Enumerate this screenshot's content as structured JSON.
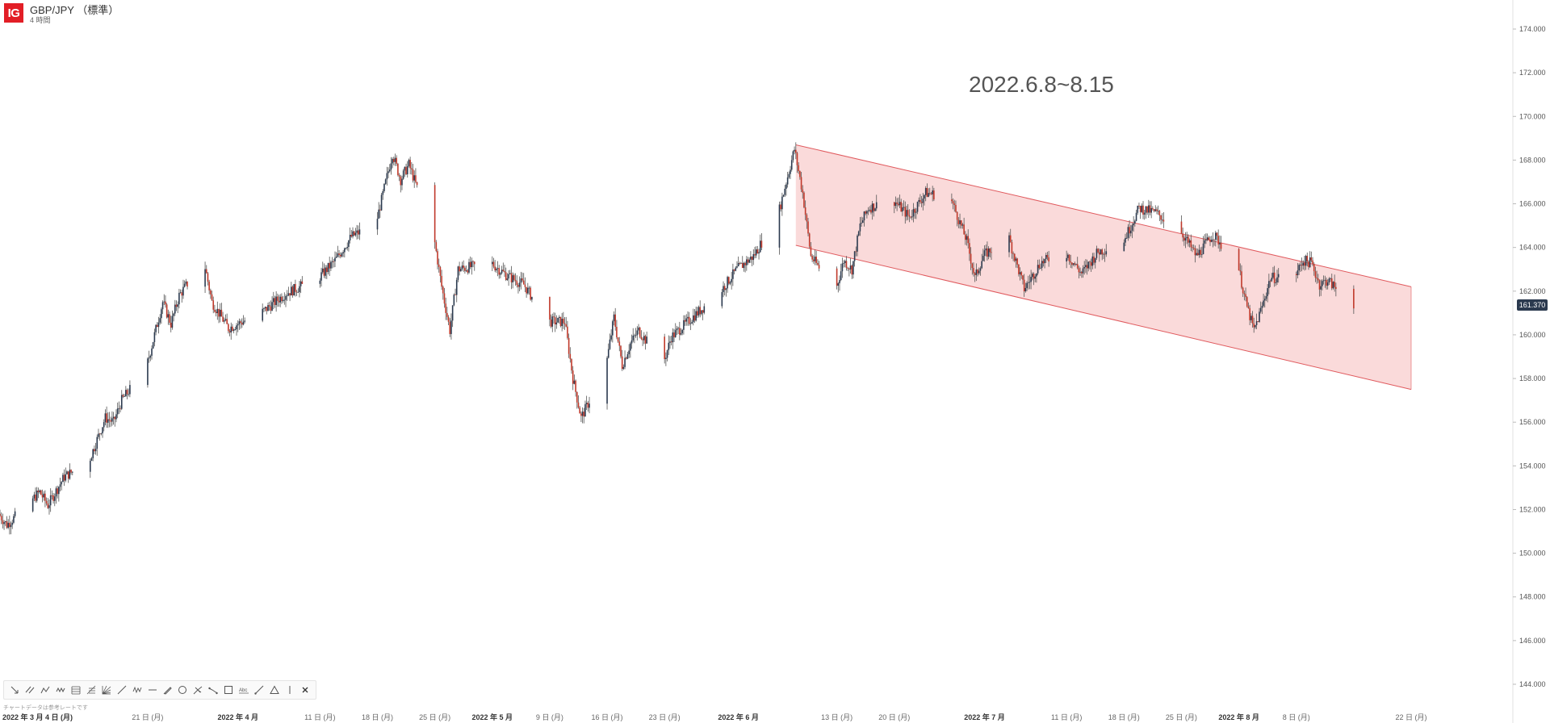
{
  "header": {
    "logo": "IG",
    "title": "GBP/JPY （標準）",
    "interval": "4 時間"
  },
  "annotation": "2022.6.8~8.15",
  "disclaimer": "チャートデータは参考レートです",
  "toolbar": {
    "tools": [
      {
        "name": "arrow-tool-icon"
      },
      {
        "name": "parallel-lines-icon"
      },
      {
        "name": "polyline-icon"
      },
      {
        "name": "zigzag-icon"
      },
      {
        "name": "fib-retracement-icon"
      },
      {
        "name": "fib-extension-icon"
      },
      {
        "name": "fib-fan-icon"
      },
      {
        "name": "trend-line-icon"
      },
      {
        "name": "wave-icon"
      },
      {
        "name": "horizontal-line-icon"
      },
      {
        "name": "pencil-icon"
      },
      {
        "name": "circle-icon"
      },
      {
        "name": "pitchfork-icon"
      },
      {
        "name": "path-icon"
      },
      {
        "name": "rectangle-icon"
      },
      {
        "name": "text-tool-icon"
      },
      {
        "name": "ray-icon"
      },
      {
        "name": "triangle-icon"
      },
      {
        "name": "vertical-line-icon"
      },
      {
        "name": "close-icon"
      }
    ],
    "text_label": "Abc"
  },
  "colors": {
    "up_candle": "#2b3a4f",
    "down_candle": "#c0392b",
    "channel_fill": "#f9d3d4",
    "channel_line": "#e05a5e",
    "price_tag": "#2b3a4f",
    "logo": "#e21e26"
  },
  "chart_data": {
    "type": "line",
    "title": "GBP/JPY （標準）",
    "subtitle": "4 時間",
    "ylim": [
      143,
      175
    ],
    "y_ticks": [
      144,
      146,
      148,
      150,
      152,
      154,
      156,
      158,
      160,
      162,
      164,
      166,
      168,
      170,
      172,
      174
    ],
    "y_tick_labels": [
      "144.000",
      "146.000",
      "148.000",
      "150.000",
      "152.000",
      "154.000",
      "156.000",
      "158.000",
      "160.000",
      "162.000",
      "164.000",
      "166.000",
      "168.000",
      "170.000",
      "172.000",
      "174.000"
    ],
    "x_ticks": [
      {
        "label": "2022 年 3 月 4 日 (月)",
        "date": "2022-03-04",
        "bold": true
      },
      {
        "label": "21 日 (月)",
        "date": "2022-03-21"
      },
      {
        "label": "2022 年 4 月",
        "date": "2022-04-01",
        "bold": true
      },
      {
        "label": "11 日 (月)",
        "date": "2022-04-11"
      },
      {
        "label": "18 日 (月)",
        "date": "2022-04-18"
      },
      {
        "label": "25 日 (月)",
        "date": "2022-04-25"
      },
      {
        "label": "2022 年 5 月",
        "date": "2022-05-02",
        "bold": true
      },
      {
        "label": "9 日 (月)",
        "date": "2022-05-09"
      },
      {
        "label": "16 日 (月)",
        "date": "2022-05-16"
      },
      {
        "label": "23 日 (月)",
        "date": "2022-05-23"
      },
      {
        "label": "2022 年 6 月",
        "date": "2022-06-01",
        "bold": true
      },
      {
        "label": "13 日 (月)",
        "date": "2022-06-13"
      },
      {
        "label": "20 日 (月)",
        "date": "2022-06-20"
      },
      {
        "label": "2022 年 7 月",
        "date": "2022-07-01",
        "bold": true
      },
      {
        "label": "11 日 (月)",
        "date": "2022-07-11"
      },
      {
        "label": "18 日 (月)",
        "date": "2022-07-18"
      },
      {
        "label": "25 日 (月)",
        "date": "2022-07-25"
      },
      {
        "label": "2022 年 8 月",
        "date": "2022-08-01",
        "bold": true
      },
      {
        "label": "8 日 (月)",
        "date": "2022-08-08"
      },
      {
        "label": "22 日 (月)",
        "date": "2022-08-22"
      }
    ],
    "x_range": [
      "2022-03-03",
      "2022-08-22"
    ],
    "series": [
      {
        "values": [
          [
            "2022-03-03",
            151.8
          ],
          [
            "2022-03-04",
            151.3
          ],
          [
            "2022-03-08",
            152.8
          ],
          [
            "2022-03-09",
            152.2
          ],
          [
            "2022-03-11",
            153.5
          ],
          [
            "2022-03-14",
            154.2
          ],
          [
            "2022-03-16",
            156.2
          ],
          [
            "2022-03-17",
            156.0
          ],
          [
            "2022-03-18",
            157.0
          ],
          [
            "2022-03-21",
            158.5
          ],
          [
            "2022-03-23",
            161.5
          ],
          [
            "2022-03-24",
            160.5
          ],
          [
            "2022-03-25",
            161.8
          ],
          [
            "2022-03-28",
            163.4
          ],
          [
            "2022-03-29",
            161.5
          ],
          [
            "2022-03-31",
            160.3
          ],
          [
            "2022-04-04",
            161.0
          ],
          [
            "2022-04-07",
            161.9
          ],
          [
            "2022-04-11",
            162.6
          ],
          [
            "2022-04-13",
            163.4
          ],
          [
            "2022-04-15",
            164.5
          ],
          [
            "2022-04-18",
            165.1
          ],
          [
            "2022-04-20",
            168.3
          ],
          [
            "2022-04-21",
            167.1
          ],
          [
            "2022-04-22",
            167.8
          ],
          [
            "2022-04-25",
            164.6
          ],
          [
            "2022-04-26",
            162.2
          ],
          [
            "2022-04-27",
            160.2
          ],
          [
            "2022-04-28",
            163.0
          ],
          [
            "2022-05-02",
            163.3
          ],
          [
            "2022-05-04",
            162.7
          ],
          [
            "2022-05-06",
            162.3
          ],
          [
            "2022-05-09",
            160.6
          ],
          [
            "2022-05-11",
            160.6
          ],
          [
            "2022-05-12",
            158.0
          ],
          [
            "2022-05-13",
            156.2
          ],
          [
            "2022-05-16",
            158.5
          ],
          [
            "2022-05-17",
            160.8
          ],
          [
            "2022-05-18",
            158.6
          ],
          [
            "2022-05-19",
            159.6
          ],
          [
            "2022-05-20",
            160.2
          ],
          [
            "2022-05-23",
            158.7
          ],
          [
            "2022-05-24",
            159.9
          ],
          [
            "2022-05-26",
            160.6
          ],
          [
            "2022-05-30",
            162.0
          ],
          [
            "2022-06-01",
            163.0
          ],
          [
            "2022-06-03",
            163.6
          ],
          [
            "2022-06-06",
            165.5
          ],
          [
            "2022-06-08",
            168.5
          ],
          [
            "2022-06-09",
            166.5
          ],
          [
            "2022-06-10",
            163.6
          ],
          [
            "2022-06-13",
            162.0
          ],
          [
            "2022-06-14",
            163.4
          ],
          [
            "2022-06-15",
            163.0
          ],
          [
            "2022-06-16",
            165.0
          ],
          [
            "2022-06-17",
            165.8
          ],
          [
            "2022-06-20",
            166.2
          ],
          [
            "2022-06-22",
            165.4
          ],
          [
            "2022-06-24",
            166.5
          ],
          [
            "2022-06-27",
            166.3
          ],
          [
            "2022-06-29",
            164.3
          ],
          [
            "2022-06-30",
            162.6
          ],
          [
            "2022-07-01",
            163.6
          ],
          [
            "2022-07-04",
            164.6
          ],
          [
            "2022-07-06",
            162.1
          ],
          [
            "2022-07-08",
            163.3
          ],
          [
            "2022-07-11",
            163.8
          ],
          [
            "2022-07-13",
            162.8
          ],
          [
            "2022-07-15",
            163.8
          ],
          [
            "2022-07-18",
            164.2
          ],
          [
            "2022-07-20",
            165.8
          ],
          [
            "2022-07-22",
            165.6
          ],
          [
            "2022-07-25",
            164.8
          ],
          [
            "2022-07-27",
            163.6
          ],
          [
            "2022-07-29",
            164.6
          ],
          [
            "2022-08-01",
            163.3
          ],
          [
            "2022-08-02",
            161.5
          ],
          [
            "2022-08-03",
            160.2
          ],
          [
            "2022-08-04",
            161.3
          ],
          [
            "2022-08-05",
            162.6
          ],
          [
            "2022-08-08",
            162.7
          ],
          [
            "2022-08-09",
            163.4
          ],
          [
            "2022-08-10",
            163.3
          ],
          [
            "2022-08-11",
            162.3
          ],
          [
            "2022-08-12",
            162.5
          ],
          [
            "2022-08-15",
            161.37
          ]
        ]
      }
    ],
    "last_price": 161.37,
    "last_price_label": "161.370",
    "channel": {
      "upper": [
        [
          "2022-06-08",
          168.7
        ],
        [
          "2022-08-22",
          162.2
        ]
      ],
      "lower": [
        [
          "2022-06-08",
          164.1
        ],
        [
          "2022-08-22",
          157.5
        ]
      ]
    },
    "grid": false,
    "legend": "none"
  }
}
